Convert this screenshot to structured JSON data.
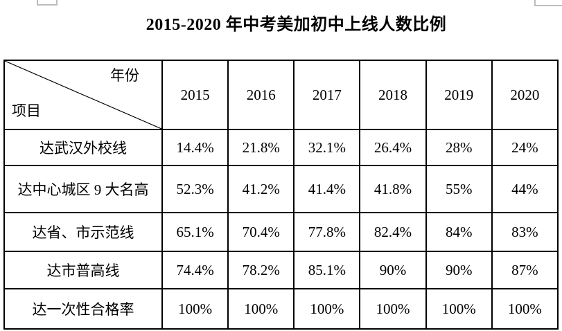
{
  "title": "2015-2020 年中考美加初中上线人数比例",
  "table": {
    "corner": {
      "year_label": "年份",
      "item_label": "项目"
    },
    "years": [
      "2015",
      "2016",
      "2017",
      "2018",
      "2019",
      "2020"
    ],
    "rows": [
      {
        "label": "达武汉外校线",
        "values": [
          "14.4%",
          "21.8%",
          "32.1%",
          "26.4%",
          "28%",
          "24%"
        ]
      },
      {
        "label": "达中心城区 9 大名高",
        "values": [
          "52.3%",
          "41.2%",
          "41.4%",
          "41.8%",
          "55%",
          "44%"
        ]
      },
      {
        "label": "达省、市示范线",
        "values": [
          "65.1%",
          "70.4%",
          "77.8%",
          "82.4%",
          "84%",
          "83%"
        ]
      },
      {
        "label": "达市普高线",
        "values": [
          "74.4%",
          "78.2%",
          "85.1%",
          "90%",
          "90%",
          "87%"
        ]
      },
      {
        "label": "达一次性合格率",
        "values": [
          "100%",
          "100%",
          "100%",
          "100%",
          "100%",
          "100%"
        ]
      }
    ]
  }
}
